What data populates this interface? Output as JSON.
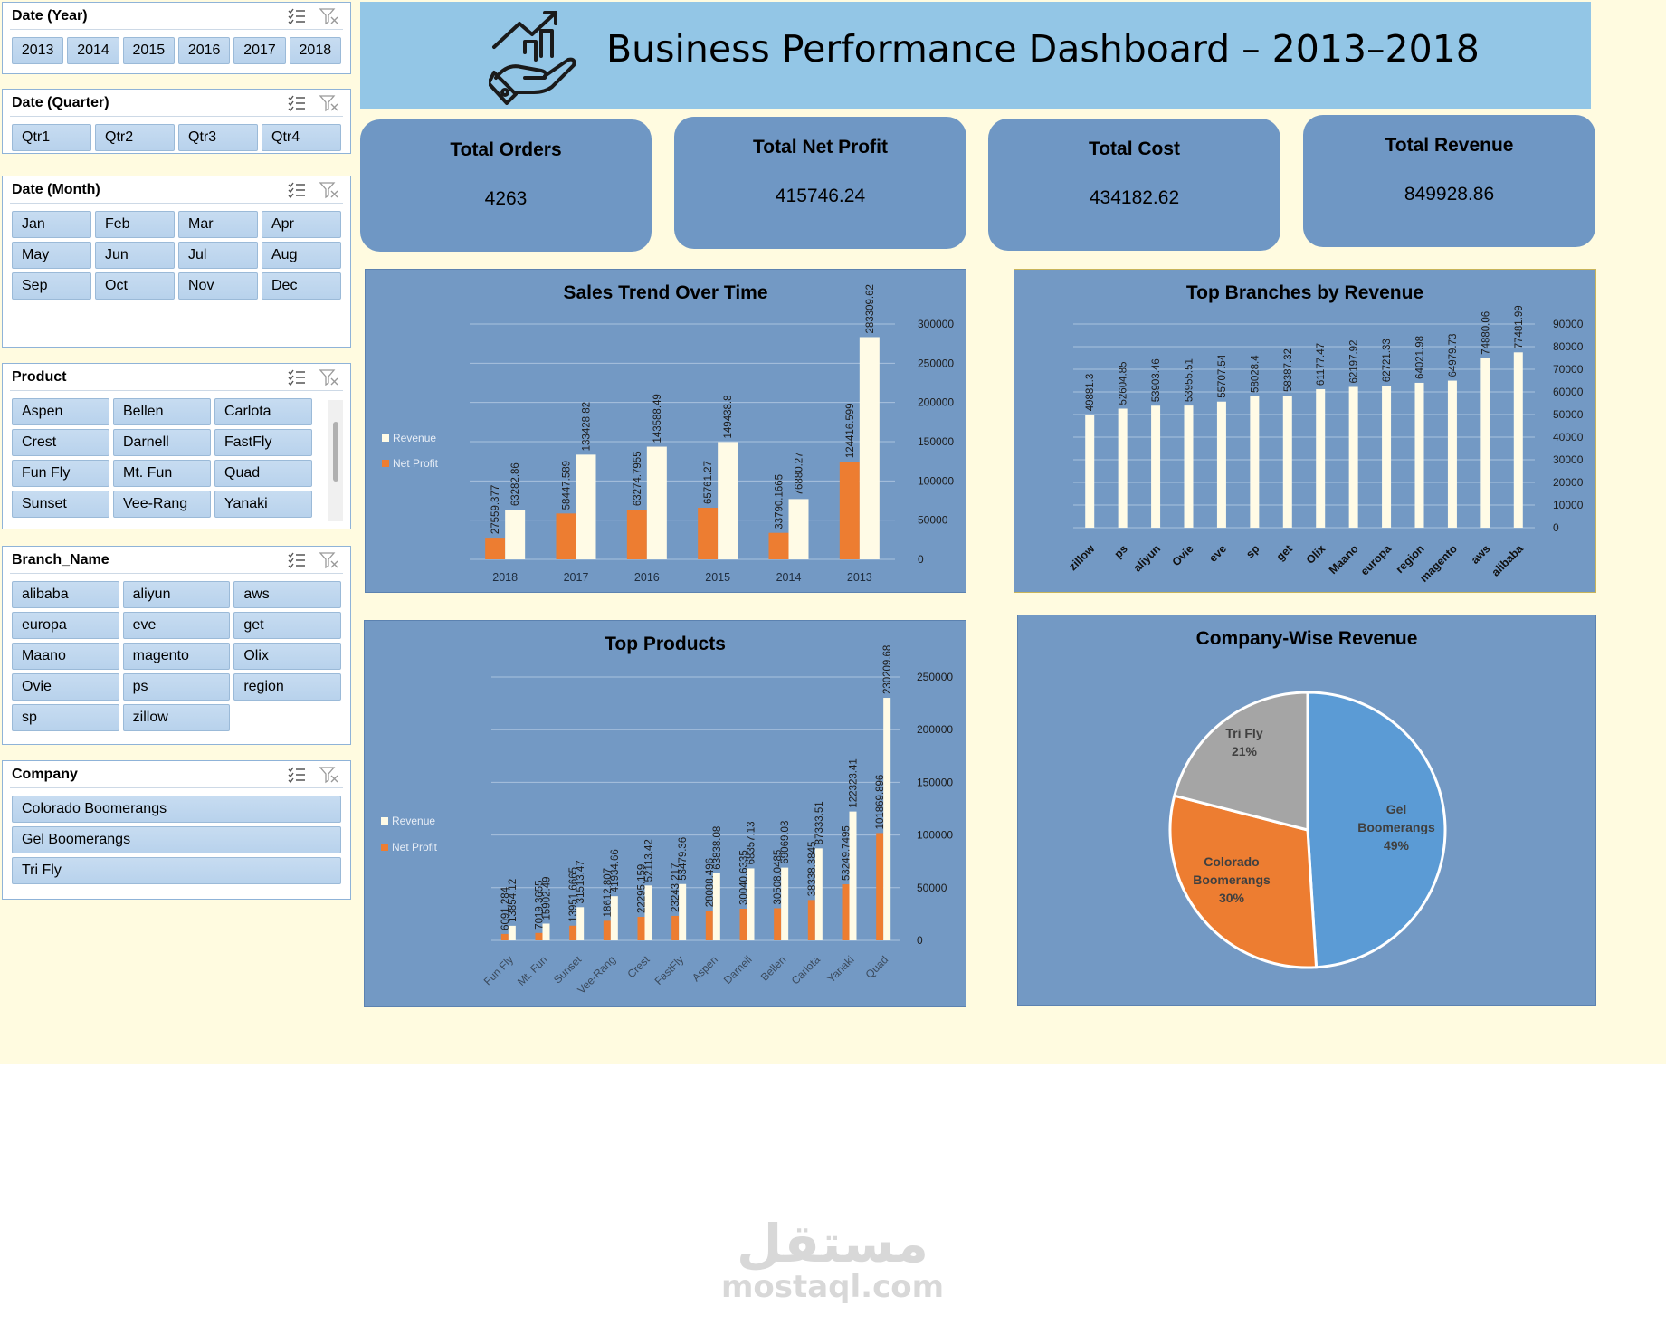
{
  "banner": {
    "title": "Business Performance Dashboard – 2013–2018"
  },
  "slicers": {
    "year": {
      "title": "Date (Year)",
      "items": [
        "2013",
        "2014",
        "2015",
        "2016",
        "2017",
        "2018"
      ]
    },
    "quarter": {
      "title": "Date (Quarter)",
      "items": [
        "Qtr1",
        "Qtr2",
        "Qtr3",
        "Qtr4"
      ]
    },
    "month": {
      "title": "Date (Month)",
      "items": [
        "Jan",
        "Feb",
        "Mar",
        "Apr",
        "May",
        "Jun",
        "Jul",
        "Aug",
        "Sep",
        "Oct",
        "Nov",
        "Dec"
      ]
    },
    "product": {
      "title": "Product",
      "items": [
        "Aspen",
        "Bellen",
        "Carlota",
        "Crest",
        "Darnell",
        "FastFly",
        "Fun Fly",
        "Mt. Fun",
        "Quad",
        "Sunset",
        "Vee-Rang",
        "Yanaki"
      ]
    },
    "branch": {
      "title": "Branch_Name",
      "items": [
        "alibaba",
        "aliyun",
        "aws",
        "europa",
        "eve",
        "get",
        "Maano",
        "magento",
        "Olix",
        "Ovie",
        "ps",
        "region",
        "sp",
        "zillow"
      ]
    },
    "company": {
      "title": "Company",
      "items": [
        "Colorado Boomerangs",
        "Gel Boomerangs",
        "Tri Fly"
      ]
    }
  },
  "kpis": [
    {
      "label": "Total Orders",
      "value": "4263"
    },
    {
      "label": "Total Net Profit",
      "value": "415746.24"
    },
    {
      "label": "Total Cost",
      "value": "434182.62"
    },
    {
      "label": "Total Revenue",
      "value": "849928.86"
    }
  ],
  "colors": {
    "revenue": "#fffbe6",
    "net_profit": "#ed7d31",
    "panel": "#7399c4",
    "banner": "#93c6e6",
    "gel": "#5b9bd5",
    "colorado": "#ed7d31",
    "trifly": "#a5a5a5"
  },
  "chart_data": [
    {
      "id": "sales",
      "type": "bar",
      "title": "Sales Trend Over Time",
      "categories": [
        "2018",
        "2017",
        "2016",
        "2015",
        "2014",
        "2013"
      ],
      "series": [
        {
          "name": "Revenue",
          "values": [
            63282.86,
            133428.82,
            143588.49,
            149438.8,
            76880.27,
            283309.62
          ],
          "labels": [
            "63282.86",
            "133428.82",
            "143588.49",
            "149438.8",
            "76880.27",
            "283309.62"
          ]
        },
        {
          "name": "Net Profit",
          "values": [
            27559.377,
            58447.589,
            63274.7955,
            65761.27,
            33790.1665,
            124416.599
          ],
          "labels": [
            "27559.377",
            "58447.589",
            "63274.7955",
            "65761.27",
            "33790.1665",
            "124416.599"
          ]
        }
      ],
      "ylim": [
        0,
        300000
      ],
      "yticks": [
        "0",
        "50000",
        "100000",
        "150000",
        "200000",
        "250000",
        "300000"
      ],
      "ytick_values": [
        0,
        50000,
        100000,
        150000,
        200000,
        250000,
        300000
      ],
      "legend": "left"
    },
    {
      "id": "branches",
      "type": "bar",
      "title": "Top Branches by Revenue",
      "categories": [
        "zillow",
        "ps",
        "aliyun",
        "Ovie",
        "eve",
        "sp",
        "get",
        "Olix",
        "Maano",
        "europa",
        "region",
        "magento",
        "aws",
        "alibaba"
      ],
      "series": [
        {
          "name": "Revenue",
          "values": [
            49881.3,
            52604.85,
            53903.46,
            53955.51,
            55707.54,
            58028.4,
            58387.32,
            61177.47,
            62197.92,
            62721.33,
            64021.98,
            64979.73,
            74880.06,
            77481.99
          ],
          "labels": [
            "49881.3",
            "52604.85",
            "53903.46",
            "53955.51",
            "55707.54",
            "58028.4",
            "58387.32",
            "61177.47",
            "62197.92",
            "62721.33",
            "64021.98",
            "64979.73",
            "74880.06",
            "77481.99"
          ]
        }
      ],
      "ylim": [
        0,
        90000
      ],
      "yticks": [
        "0",
        "10000",
        "20000",
        "30000",
        "40000",
        "50000",
        "60000",
        "70000",
        "80000",
        "90000"
      ],
      "ytick_values": [
        0,
        10000,
        20000,
        30000,
        40000,
        50000,
        60000,
        70000,
        80000,
        90000
      ]
    },
    {
      "id": "products",
      "type": "bar",
      "title": "Top Products",
      "categories": [
        "Fun Fly",
        "Mt. Fun",
        "Sunset",
        "Vee-Rang",
        "Crest",
        "FastFly",
        "Aspen",
        "Darnell",
        "Bellen",
        "Carlota",
        "Yanaki",
        "Quad"
      ],
      "series": [
        {
          "name": "Revenue",
          "values": [
            13854.12,
            15902.49,
            31513.47,
            41934.66,
            52113.42,
            53479.36,
            63838.08,
            68357.13,
            69069.03,
            87333.51,
            122323.41,
            230209.68
          ],
          "labels": [
            "13854.12",
            "15902.49",
            "31513.47",
            "41934.66",
            "52113.42",
            "53479.36",
            "63838.08",
            "68357.13",
            "69069.03",
            "87333.51",
            "122323.41",
            "230209.68"
          ]
        },
        {
          "name": "Net Profit",
          "values": [
            6091.284,
            7019.3655,
            13951.6665,
            18612.807,
            22295.159,
            23243.217,
            28088.496,
            30040.6335,
            30508.0485,
            38338.3845,
            53249.7495,
            101869.896
          ],
          "labels": [
            "6091.284",
            "7019.3655",
            "13951.6665",
            "18612.807",
            "22295.159",
            "23243.217",
            "28088.496",
            "30040.6335",
            "30508.0485",
            "38338.3845",
            "53249.7495",
            "101869.896"
          ]
        }
      ],
      "ylim": [
        0,
        250000
      ],
      "yticks": [
        "0",
        "50000",
        "100000",
        "150000",
        "200000",
        "250000"
      ],
      "ytick_values": [
        0,
        50000,
        100000,
        150000,
        200000,
        250000
      ],
      "legend": "left"
    },
    {
      "id": "company",
      "type": "pie",
      "title": "Company-Wise Revenue",
      "slices": [
        {
          "name": "Gel Boomerangs",
          "label_lines": [
            "Gel",
            "Boomerangs"
          ],
          "percent": 49,
          "percent_label": "49%"
        },
        {
          "name": "Colorado Boomerangs",
          "label_lines": [
            "Colorado",
            "Boomerangs"
          ],
          "percent": 30,
          "percent_label": "30%"
        },
        {
          "name": "Tri Fly",
          "label_lines": [
            "Tri Fly"
          ],
          "percent": 21,
          "percent_label": "21%"
        }
      ]
    }
  ],
  "watermark": {
    "arabic": "مستقل",
    "latin": "mostaql.com"
  }
}
